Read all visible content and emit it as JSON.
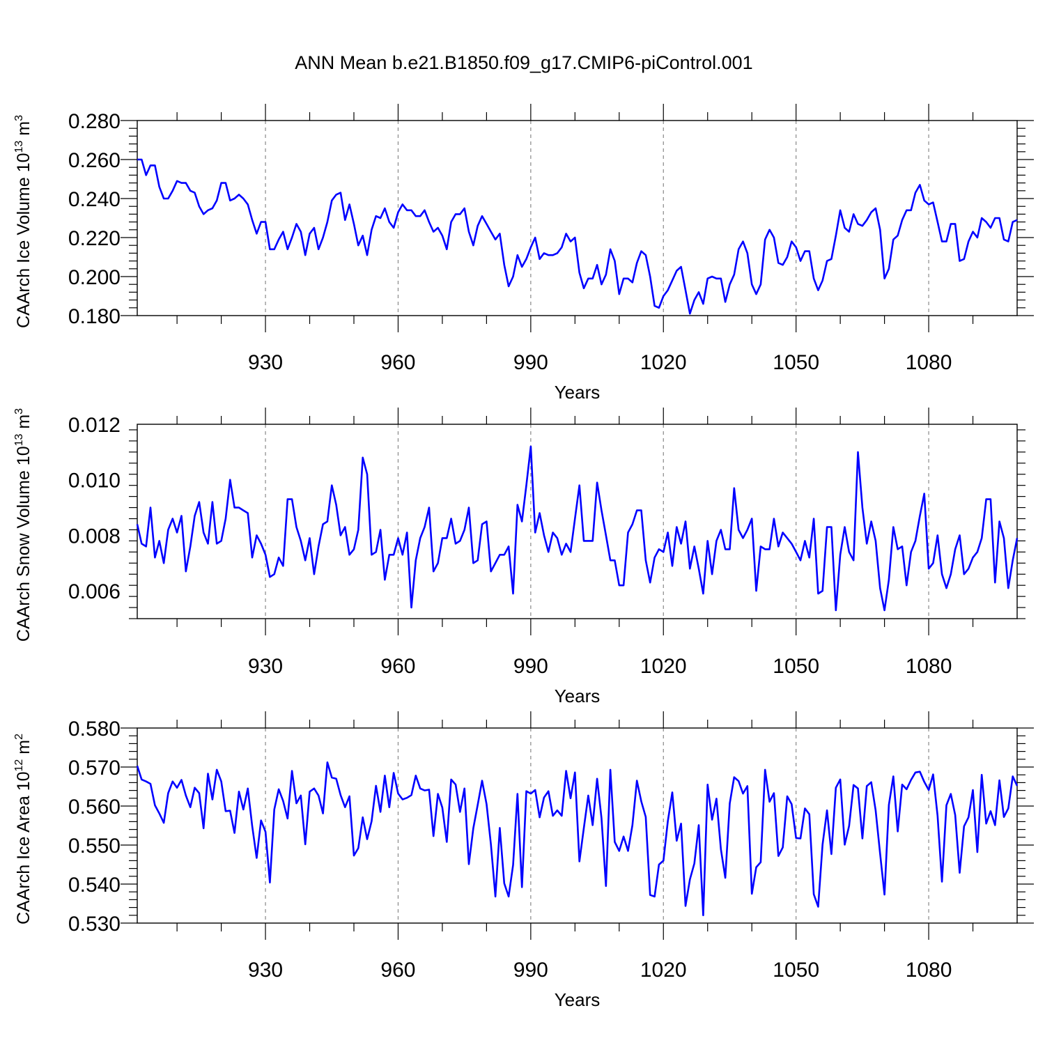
{
  "chart_data": {
    "title": "ANN Mean b.e21.B1850.f09_g17.CMIP6-piControl.001",
    "line_color": "#0000ff",
    "panels": [
      {
        "type": "line",
        "ylabel": "CAArch Ice Volume 10",
        "ylabel_exp": "13",
        "ylabel_unit": " m",
        "ylabel_unit_exp": "3",
        "xlabel": "Years",
        "xlim": [
          901,
          1100
        ],
        "ylim": [
          0.18,
          0.28
        ],
        "yticks": [
          "0.180",
          "0.200",
          "0.220",
          "0.240",
          "0.260",
          "0.280"
        ],
        "xticks": [
          "930",
          "960",
          "990",
          "1020",
          "1050",
          "1080"
        ],
        "x_start": 901,
        "values": [
          0.26,
          0.26,
          0.252,
          0.257,
          0.257,
          0.246,
          0.24,
          0.24,
          0.244,
          0.249,
          0.248,
          0.248,
          0.244,
          0.243,
          0.236,
          0.232,
          0.234,
          0.235,
          0.239,
          0.248,
          0.248,
          0.239,
          0.24,
          0.242,
          0.24,
          0.237,
          0.229,
          0.222,
          0.228,
          0.228,
          0.214,
          0.214,
          0.219,
          0.223,
          0.214,
          0.22,
          0.227,
          0.223,
          0.211,
          0.222,
          0.225,
          0.214,
          0.22,
          0.228,
          0.239,
          0.242,
          0.243,
          0.229,
          0.237,
          0.227,
          0.216,
          0.221,
          0.211,
          0.224,
          0.231,
          0.23,
          0.235,
          0.228,
          0.225,
          0.233,
          0.237,
          0.234,
          0.234,
          0.231,
          0.231,
          0.234,
          0.228,
          0.223,
          0.225,
          0.221,
          0.214,
          0.228,
          0.232,
          0.232,
          0.235,
          0.223,
          0.216,
          0.226,
          0.231,
          0.227,
          0.223,
          0.219,
          0.222,
          0.206,
          0.195,
          0.2,
          0.211,
          0.205,
          0.209,
          0.215,
          0.22,
          0.209,
          0.212,
          0.211,
          0.211,
          0.212,
          0.215,
          0.222,
          0.218,
          0.22,
          0.202,
          0.194,
          0.199,
          0.199,
          0.206,
          0.196,
          0.201,
          0.214,
          0.208,
          0.191,
          0.199,
          0.199,
          0.197,
          0.207,
          0.213,
          0.211,
          0.2,
          0.185,
          0.184,
          0.19,
          0.193,
          0.198,
          0.203,
          0.205,
          0.193,
          0.181,
          0.188,
          0.192,
          0.186,
          0.199,
          0.2,
          0.199,
          0.199,
          0.187,
          0.196,
          0.201,
          0.214,
          0.218,
          0.212,
          0.196,
          0.191,
          0.196,
          0.219,
          0.224,
          0.22,
          0.207,
          0.206,
          0.21,
          0.218,
          0.215,
          0.208,
          0.213,
          0.213,
          0.199,
          0.193,
          0.198,
          0.208,
          0.209,
          0.221,
          0.234,
          0.225,
          0.223,
          0.232,
          0.227,
          0.226,
          0.229,
          0.233,
          0.235,
          0.224,
          0.199,
          0.204,
          0.219,
          0.221,
          0.229,
          0.234,
          0.234,
          0.243,
          0.247,
          0.239,
          0.237,
          0.238,
          0.228,
          0.218,
          0.218,
          0.227,
          0.227,
          0.208,
          0.209,
          0.218,
          0.223,
          0.22,
          0.23,
          0.228,
          0.225,
          0.23,
          0.23,
          0.219,
          0.218,
          0.228,
          0.229
        ]
      },
      {
        "type": "line",
        "ylabel": "CAArch Snow Volume 10",
        "ylabel_exp": "13",
        "ylabel_unit": " m",
        "ylabel_unit_exp": "3",
        "xlabel": "Years",
        "xlim": [
          901,
          1100
        ],
        "ylim": [
          0.005,
          0.012
        ],
        "yticks": [
          "0.006",
          "0.008",
          "0.010",
          "0.012"
        ],
        "xticks": [
          "930",
          "960",
          "990",
          "1020",
          "1050",
          "1080"
        ],
        "x_start": 901,
        "values": [
          0.0084,
          0.0077,
          0.0076,
          0.009,
          0.0072,
          0.0078,
          0.007,
          0.0082,
          0.0086,
          0.0081,
          0.0087,
          0.0067,
          0.0076,
          0.0087,
          0.0092,
          0.0081,
          0.0077,
          0.0092,
          0.0077,
          0.0078,
          0.0086,
          0.01,
          0.009,
          0.009,
          0.0089,
          0.0088,
          0.0072,
          0.008,
          0.0077,
          0.0073,
          0.0065,
          0.0066,
          0.0072,
          0.0069,
          0.0093,
          0.0093,
          0.0083,
          0.0078,
          0.0071,
          0.0079,
          0.0066,
          0.0076,
          0.0084,
          0.0085,
          0.0098,
          0.0091,
          0.008,
          0.0083,
          0.0073,
          0.0075,
          0.0082,
          0.0108,
          0.0102,
          0.0073,
          0.0074,
          0.0082,
          0.0064,
          0.0073,
          0.0073,
          0.0079,
          0.0073,
          0.0081,
          0.0054,
          0.0071,
          0.0079,
          0.0083,
          0.009,
          0.0067,
          0.007,
          0.0079,
          0.0079,
          0.0086,
          0.0077,
          0.0078,
          0.0082,
          0.009,
          0.007,
          0.0071,
          0.0084,
          0.0085,
          0.0067,
          0.007,
          0.0073,
          0.0073,
          0.0076,
          0.0059,
          0.0091,
          0.0085,
          0.0098,
          0.0112,
          0.0081,
          0.0088,
          0.008,
          0.0074,
          0.0081,
          0.0079,
          0.0073,
          0.0077,
          0.0074,
          0.0086,
          0.0098,
          0.0078,
          0.0078,
          0.0078,
          0.0099,
          0.0089,
          0.008,
          0.0071,
          0.0071,
          0.0062,
          0.0062,
          0.0081,
          0.0084,
          0.0089,
          0.0089,
          0.0071,
          0.0063,
          0.0072,
          0.0075,
          0.0074,
          0.0081,
          0.0069,
          0.0083,
          0.0077,
          0.0085,
          0.0068,
          0.0076,
          0.0068,
          0.0059,
          0.0078,
          0.0066,
          0.0078,
          0.0082,
          0.0075,
          0.0075,
          0.0097,
          0.0082,
          0.0079,
          0.0082,
          0.0086,
          0.006,
          0.0076,
          0.0075,
          0.0075,
          0.0086,
          0.0076,
          0.0081,
          0.0079,
          0.0077,
          0.0074,
          0.0071,
          0.0078,
          0.0072,
          0.0086,
          0.0059,
          0.006,
          0.0083,
          0.0083,
          0.0053,
          0.0073,
          0.0083,
          0.0074,
          0.0071,
          0.011,
          0.009,
          0.0077,
          0.0085,
          0.0078,
          0.0061,
          0.0053,
          0.0064,
          0.0083,
          0.0075,
          0.0076,
          0.0062,
          0.0074,
          0.0078,
          0.0087,
          0.0095,
          0.0068,
          0.007,
          0.008,
          0.0066,
          0.0061,
          0.0066,
          0.0075,
          0.008,
          0.0066,
          0.0068,
          0.0072,
          0.0074,
          0.0079,
          0.0093,
          0.0093,
          0.0063,
          0.0085,
          0.0079,
          0.0061,
          0.0071,
          0.0079
        ]
      },
      {
        "type": "line",
        "ylabel": "CAArch Ice Area 10",
        "ylabel_exp": "12",
        "ylabel_unit": " m",
        "ylabel_unit_exp": "2",
        "xlabel": "Years",
        "xlim": [
          901,
          1100
        ],
        "ylim": [
          0.53,
          0.58
        ],
        "yticks": [
          "0.530",
          "0.540",
          "0.550",
          "0.560",
          "0.570",
          "0.580"
        ],
        "xticks": [
          "930",
          "960",
          "990",
          "1020",
          "1050",
          "1080"
        ],
        "x_start": 901,
        "values": [
          0.5703,
          0.5668,
          0.5663,
          0.5657,
          0.5602,
          0.5581,
          0.5557,
          0.5633,
          0.5663,
          0.5647,
          0.5667,
          0.5627,
          0.5597,
          0.5647,
          0.5633,
          0.5543,
          0.5683,
          0.5617,
          0.5693,
          0.5663,
          0.5587,
          0.5588,
          0.5531,
          0.5637,
          0.5591,
          0.5645,
          0.5549,
          0.5467,
          0.5563,
          0.5534,
          0.5404,
          0.5591,
          0.5643,
          0.5613,
          0.5568,
          0.569,
          0.5607,
          0.5627,
          0.5502,
          0.5637,
          0.5645,
          0.5627,
          0.5581,
          0.5712,
          0.5673,
          0.567,
          0.5628,
          0.5597,
          0.5625,
          0.5473,
          0.5492,
          0.5571,
          0.5515,
          0.5561,
          0.5652,
          0.5585,
          0.5678,
          0.5597,
          0.5685,
          0.5632,
          0.5617,
          0.5621,
          0.5628,
          0.5678,
          0.5645,
          0.564,
          0.5642,
          0.5523,
          0.5631,
          0.5596,
          0.5508,
          0.5668,
          0.5655,
          0.5585,
          0.5645,
          0.5451,
          0.5543,
          0.5603,
          0.5665,
          0.5605,
          0.5501,
          0.5368,
          0.5544,
          0.5402,
          0.5368,
          0.5449,
          0.5631,
          0.5392,
          0.5638,
          0.5632,
          0.5641,
          0.5571,
          0.5622,
          0.5638,
          0.5575,
          0.5589,
          0.5575,
          0.569,
          0.562,
          0.5686,
          0.5458,
          0.5543,
          0.5627,
          0.5551,
          0.567,
          0.5569,
          0.5395,
          0.5693,
          0.5508,
          0.5485,
          0.5522,
          0.5485,
          0.5551,
          0.5665,
          0.5612,
          0.5572,
          0.5372,
          0.5368,
          0.545,
          0.546,
          0.5561,
          0.5635,
          0.5511,
          0.5555,
          0.5344,
          0.5412,
          0.5453,
          0.5551,
          0.532,
          0.5655,
          0.5565,
          0.5619,
          0.5489,
          0.5416,
          0.5607,
          0.5674,
          0.5664,
          0.5632,
          0.5651,
          0.5375,
          0.5443,
          0.5456,
          0.5693,
          0.5611,
          0.5633,
          0.5472,
          0.5494,
          0.5625,
          0.5605,
          0.5518,
          0.5517,
          0.5594,
          0.5579,
          0.5374,
          0.5342,
          0.5501,
          0.5589,
          0.5477,
          0.5647,
          0.5668,
          0.5501,
          0.5549,
          0.5654,
          0.5645,
          0.5517,
          0.5651,
          0.5661,
          0.5589,
          0.5478,
          0.5373,
          0.5603,
          0.5676,
          0.5535,
          0.5655,
          0.5643,
          0.5667,
          0.5686,
          0.5688,
          0.5662,
          0.5641,
          0.5681,
          0.5575,
          0.5406,
          0.5602,
          0.5631,
          0.5577,
          0.5429,
          0.5548,
          0.5571,
          0.5641,
          0.5482,
          0.568,
          0.5555,
          0.5587,
          0.5551,
          0.5666,
          0.5572,
          0.5594,
          0.5676,
          0.5652
        ]
      }
    ]
  }
}
